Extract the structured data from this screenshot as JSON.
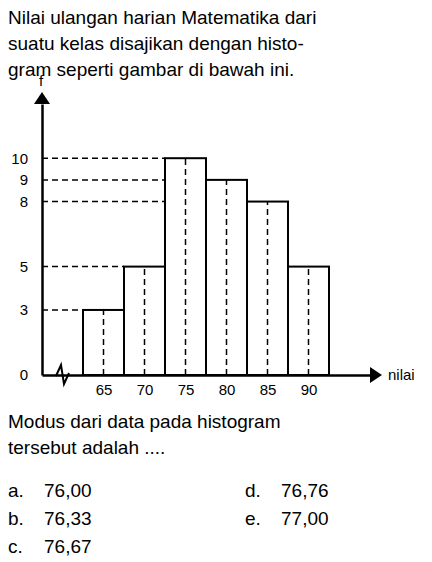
{
  "intro": [
    "Nilai ulangan harian Matematika dari",
    "suatu kelas disajikan dengan histo-",
    "gram seperti gambar di bawah ini."
  ],
  "chart_data": {
    "type": "histogram",
    "x_label": "nilai",
    "y_label": "f",
    "bins": [
      62.5,
      67.5,
      72.5,
      77.5,
      82.5,
      87.5,
      92.5
    ],
    "values": [
      3,
      5,
      10,
      9,
      8,
      5
    ],
    "xlim": [
      57.5,
      97.5
    ],
    "xticks": [
      65,
      70,
      75,
      80,
      85,
      90
    ],
    "ylim": [
      0,
      12.5
    ],
    "yticks": [
      0,
      3,
      5,
      8,
      9,
      10
    ],
    "grid": true,
    "color": "#ffffff"
  },
  "question": [
    "Modus dari data pada histogram",
    "tersebut adalah ...."
  ],
  "options": [
    {
      "label": "a.",
      "text": "76,00"
    },
    {
      "label": "b.",
      "text": "76,33"
    },
    {
      "label": "c.",
      "text": "76,67"
    },
    {
      "label": "d.",
      "text": "76,76"
    },
    {
      "label": "e.",
      "text": "77,00"
    }
  ]
}
